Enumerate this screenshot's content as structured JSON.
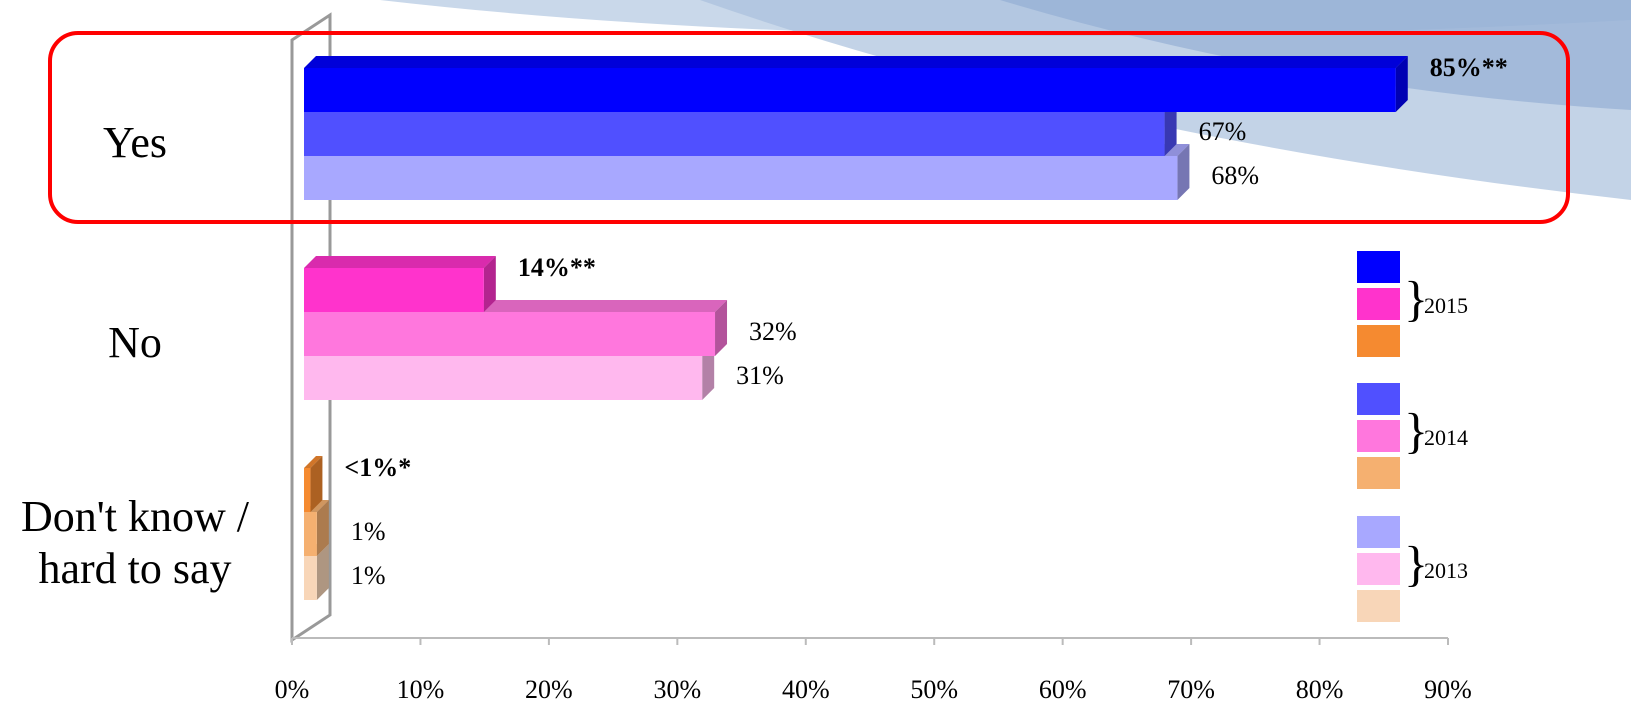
{
  "chart_data": {
    "type": "bar",
    "orientation": "horizontal",
    "categories": [
      "Yes",
      "No",
      "Don't know / hard to say"
    ],
    "series": [
      {
        "name": "2015",
        "colors": [
          "#0000ff",
          "#ff33cc",
          "#f58a30"
        ],
        "values": [
          85,
          14,
          0.5
        ],
        "value_labels": [
          "85%**",
          "14%**",
          "<1%*"
        ]
      },
      {
        "name": "2014",
        "colors": [
          "#5050ff",
          "#ff77dd",
          "#f5b070"
        ],
        "values": [
          67,
          32,
          1
        ],
        "value_labels": [
          "67%",
          "32%",
          "1%"
        ]
      },
      {
        "name": "2013",
        "colors": [
          "#a8a8ff",
          "#ffb8ee",
          "#f8d6b8"
        ],
        "values": [
          68,
          31,
          1
        ],
        "value_labels": [
          "68%",
          "31%",
          "1%"
        ]
      }
    ],
    "xlim": [
      0,
      90
    ],
    "xticks": [
      {
        "value": 0,
        "label": "0%"
      },
      {
        "value": 10,
        "label": "10%"
      },
      {
        "value": 20,
        "label": "20%"
      },
      {
        "value": 30,
        "label": "30%"
      },
      {
        "value": 40,
        "label": "40%"
      },
      {
        "value": 50,
        "label": "50%"
      },
      {
        "value": 60,
        "label": "60%"
      },
      {
        "value": 70,
        "label": "70%"
      },
      {
        "value": 80,
        "label": "80%"
      },
      {
        "value": 90,
        "label": "90%"
      }
    ]
  }
}
